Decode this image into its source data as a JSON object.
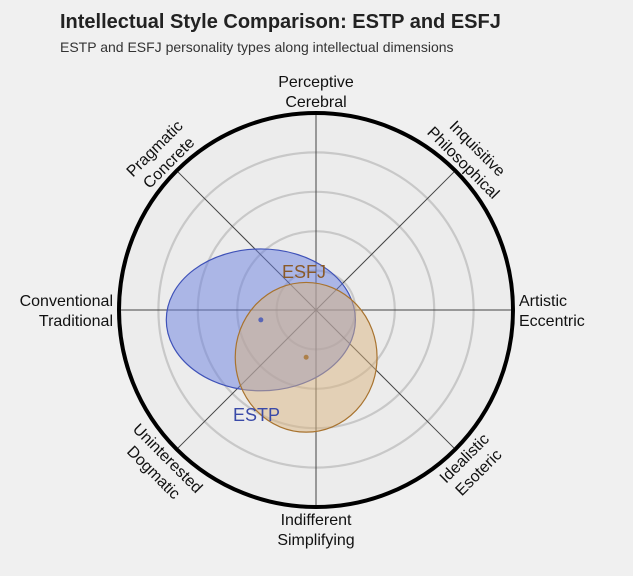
{
  "chart_data": {
    "type": "radial-ellipse",
    "title": "Intellectual Style Comparison: ESTP and ESFJ",
    "subtitle": "ESTP and ESFJ personality types along intellectual dimensions",
    "axes": [
      {
        "angle": 90,
        "lines": [
          "Perceptive",
          "Cerebral"
        ]
      },
      {
        "angle": 45,
        "lines": [
          "Inquisitive",
          "Philosophical"
        ]
      },
      {
        "angle": 0,
        "lines": [
          "Artistic",
          "Eccentric"
        ]
      },
      {
        "angle": -45,
        "lines": [
          "Idealistic",
          "Esoteric"
        ]
      },
      {
        "angle": -90,
        "lines": [
          "Indifferent",
          "Simplifying"
        ]
      },
      {
        "angle": -135,
        "lines": [
          "Uninterested",
          "Dogmatic"
        ]
      },
      {
        "angle": 180,
        "lines": [
          "Conventional",
          "Traditional"
        ]
      },
      {
        "angle": 135,
        "lines": [
          "Pragmatic",
          "Concrete"
        ]
      }
    ],
    "rings": [
      0.2,
      0.4,
      0.6,
      0.8
    ],
    "grid": true,
    "series": [
      {
        "name": "ESTP",
        "center": [
          -0.28,
          -0.05
        ],
        "radii": [
          0.48,
          0.36
        ],
        "fill": "#6a7fe0",
        "stroke": "#3f52b8",
        "label_color": "#3a4aa8"
      },
      {
        "name": "ESFJ",
        "center": [
          -0.05,
          -0.24
        ],
        "radii": [
          0.36,
          0.38
        ],
        "fill": "#d9b47f",
        "stroke": "#a8732f",
        "label_color": "#8a5a28"
      }
    ]
  }
}
